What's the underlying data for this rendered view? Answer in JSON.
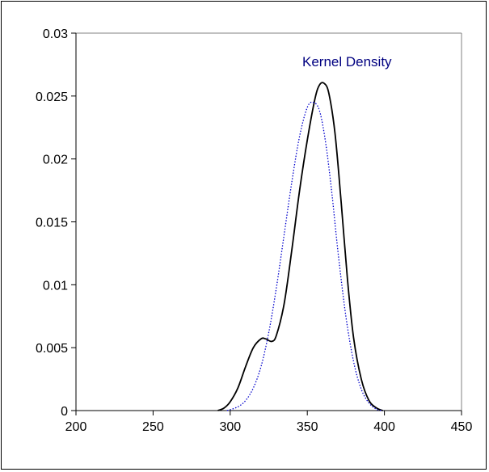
{
  "chart_data": {
    "type": "line",
    "title": "",
    "xlabel": "",
    "ylabel": "",
    "xlim": [
      200,
      450
    ],
    "ylim": [
      0,
      0.03
    ],
    "x_ticks": [
      200,
      250,
      300,
      350,
      400,
      450
    ],
    "x_tick_labels": [
      "200",
      "250",
      "300",
      "350",
      "400",
      "450"
    ],
    "y_ticks": [
      0,
      0.005,
      0.01,
      0.015,
      0.02,
      0.025,
      0.03
    ],
    "y_tick_labels": [
      "0",
      "0.005",
      "0.01",
      "0.015",
      "0.02",
      "0.025",
      "0.03"
    ],
    "grid": false,
    "legend": "none",
    "annotations": [
      {
        "text": "Kernel Density",
        "color": "#000080"
      }
    ],
    "series": [
      {
        "style": "solid",
        "color": "#000000",
        "x": [
          292,
          296,
          300,
          305,
          310,
          315,
          320,
          323,
          327,
          330,
          335,
          340,
          345,
          350,
          355,
          358,
          361,
          364,
          368,
          372,
          376,
          380,
          385,
          390,
          395,
          399
        ],
        "y": [
          0,
          0.0002,
          0.0007,
          0.0018,
          0.0035,
          0.005,
          0.0057,
          0.0057,
          0.0055,
          0.006,
          0.0085,
          0.0128,
          0.0175,
          0.0215,
          0.0248,
          0.0259,
          0.026,
          0.0252,
          0.022,
          0.0165,
          0.0105,
          0.0058,
          0.0025,
          0.0008,
          0.0002,
          0
        ]
      },
      {
        "style": "dotted",
        "color": "#0000cc",
        "x": [
          298,
          305,
          310,
          315,
          320,
          325,
          330,
          335,
          340,
          345,
          350,
          354,
          358,
          362,
          366,
          370,
          375,
          380,
          385,
          390,
          395,
          399
        ],
        "y": [
          0,
          0.0003,
          0.0008,
          0.0018,
          0.0035,
          0.0062,
          0.0098,
          0.014,
          0.0182,
          0.0218,
          0.0241,
          0.0245,
          0.0238,
          0.0212,
          0.0172,
          0.0125,
          0.0075,
          0.0039,
          0.0017,
          0.0006,
          0.0001,
          0
        ]
      }
    ]
  }
}
